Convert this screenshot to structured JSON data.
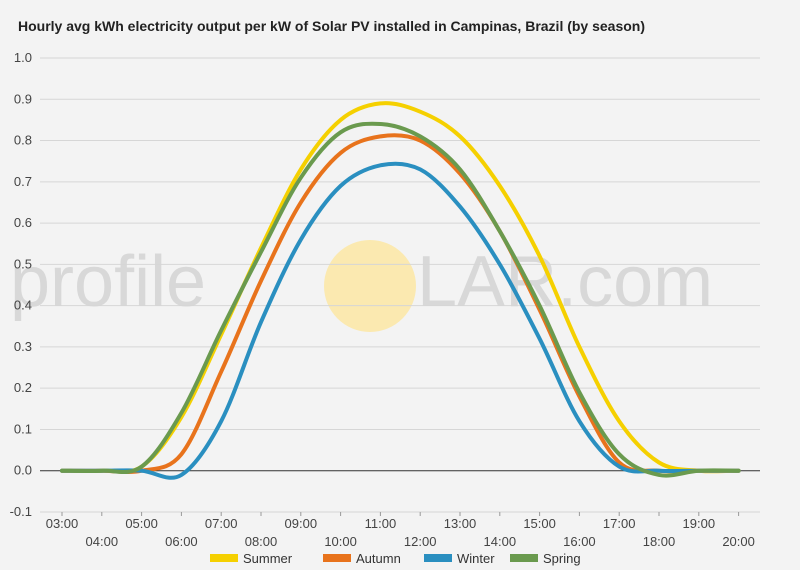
{
  "chart_data": {
    "type": "line",
    "title": "Hourly avg kWh electricity output per kW of Solar PV installed in Campinas, Brazil (by season)",
    "xlabel": "",
    "ylabel": "",
    "categories": [
      "03:00",
      "04:00",
      "05:00",
      "06:00",
      "07:00",
      "08:00",
      "09:00",
      "10:00",
      "11:00",
      "12:00",
      "13:00",
      "14:00",
      "15:00",
      "16:00",
      "17:00",
      "18:00",
      "19:00",
      "20:00"
    ],
    "ylim": [
      -0.1,
      1.0
    ],
    "yticks": [
      "-0.1",
      "0.0",
      "0.1",
      "0.2",
      "0.3",
      "0.4",
      "0.5",
      "0.6",
      "0.7",
      "0.8",
      "0.9",
      "1.0"
    ],
    "grid": true,
    "legend_position": "bottom",
    "series": [
      {
        "name": "Summer",
        "color": "#f5d000",
        "values": [
          0.0,
          0.0,
          0.01,
          0.13,
          0.33,
          0.54,
          0.73,
          0.85,
          0.89,
          0.87,
          0.81,
          0.69,
          0.52,
          0.3,
          0.12,
          0.02,
          0.0,
          0.0
        ]
      },
      {
        "name": "Autumn",
        "color": "#e8731c",
        "values": [
          0.0,
          0.0,
          0.0,
          0.04,
          0.24,
          0.46,
          0.65,
          0.77,
          0.81,
          0.8,
          0.72,
          0.58,
          0.39,
          0.18,
          0.02,
          0.0,
          0.0,
          0.0
        ]
      },
      {
        "name": "Winter",
        "color": "#2a8fc0",
        "values": [
          0.0,
          0.0,
          0.0,
          -0.01,
          0.12,
          0.36,
          0.56,
          0.69,
          0.74,
          0.73,
          0.64,
          0.5,
          0.32,
          0.12,
          0.01,
          0.0,
          0.0,
          0.0
        ]
      },
      {
        "name": "Spring",
        "color": "#6a9a4e",
        "values": [
          0.0,
          0.0,
          0.01,
          0.14,
          0.34,
          0.53,
          0.71,
          0.82,
          0.84,
          0.81,
          0.73,
          0.58,
          0.4,
          0.19,
          0.04,
          -0.01,
          0.0,
          0.0
        ]
      }
    ]
  },
  "watermark": {
    "left_text": "profile",
    "right_text": "LAR.com",
    "sun_color": "#fbe9b0"
  }
}
